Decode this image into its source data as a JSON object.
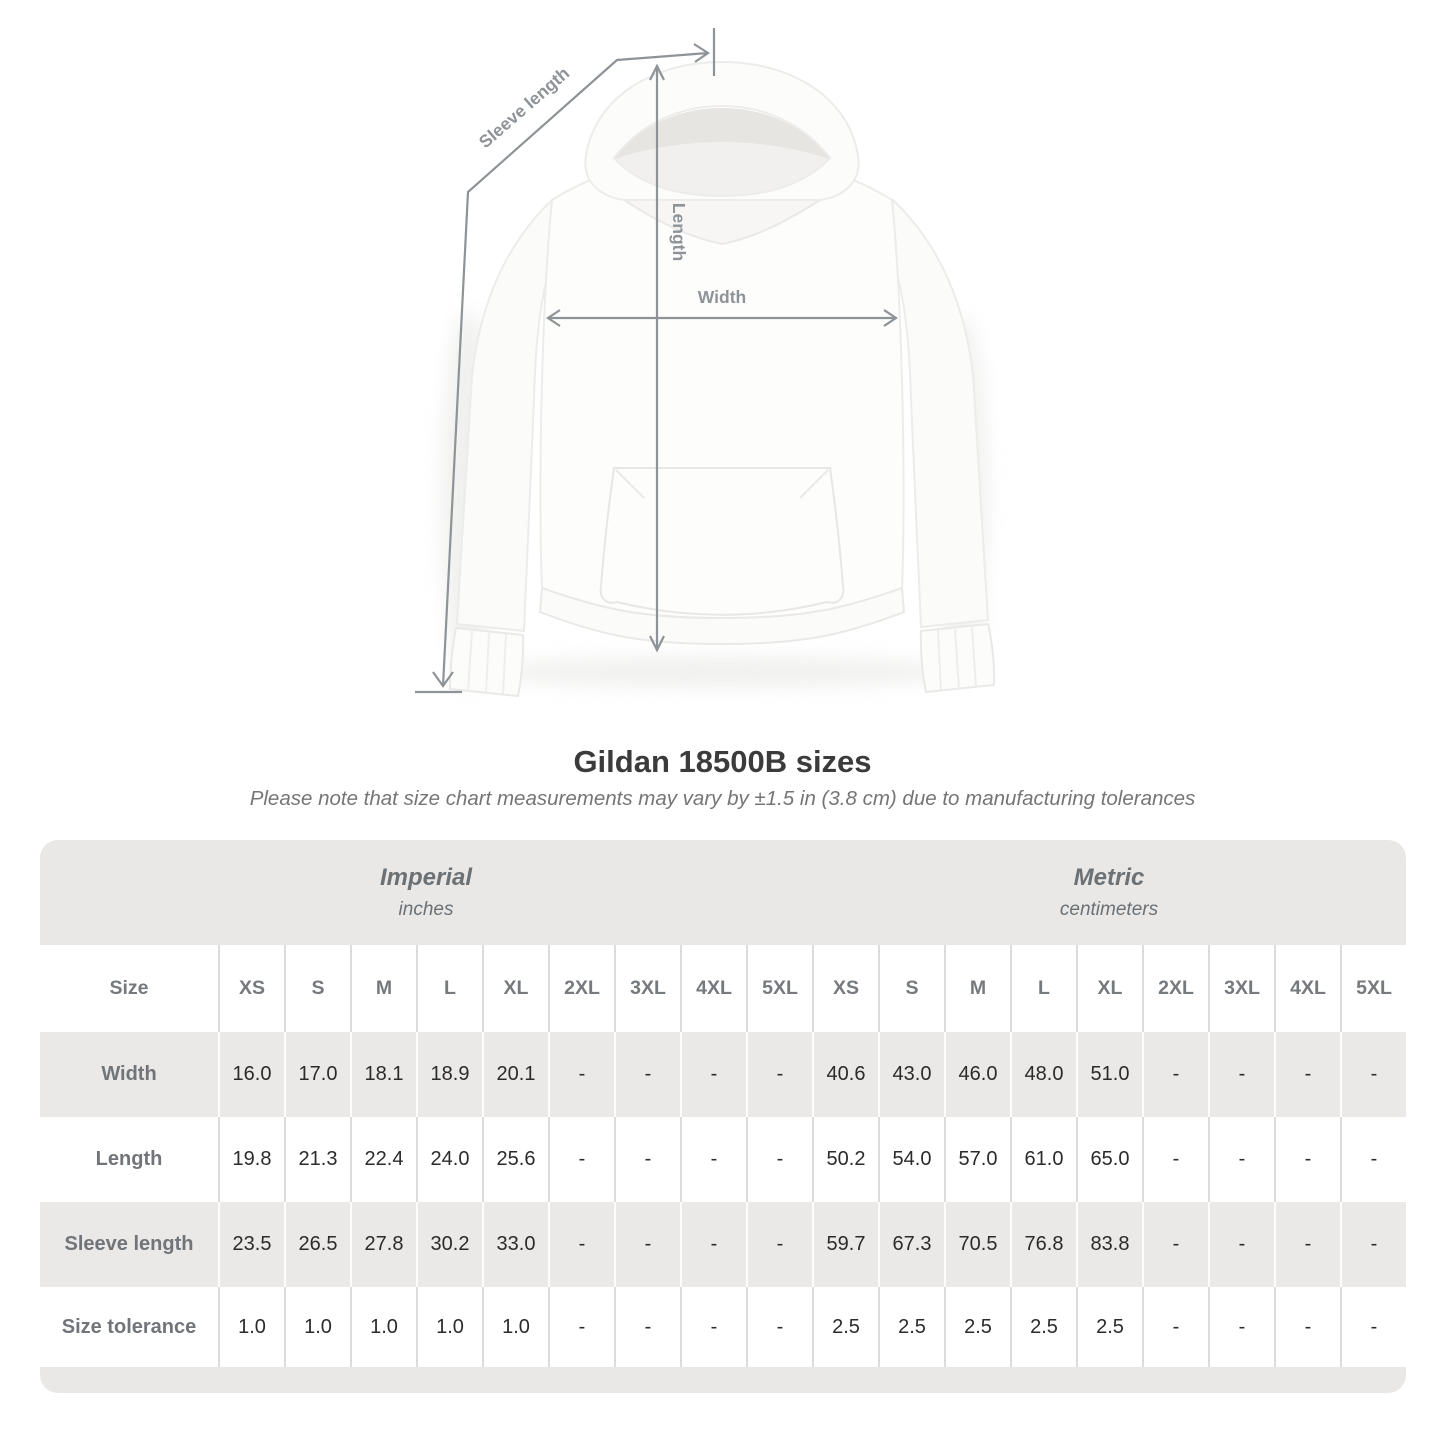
{
  "title": "Gildan 18500B sizes",
  "subtitle": "Please note that size chart measurements may vary by ±1.5 in (3.8 cm) due to manufacturing tolerances",
  "diagram": {
    "product": "white pullover hoodie, front view",
    "measure_labels": {
      "sleeve_length": "Sleeve length",
      "length": "Length",
      "width": "Width"
    }
  },
  "chart_data": {
    "type": "table",
    "title": "Gildan 18500B sizes",
    "corner_header": "Size",
    "unit_groups": [
      {
        "label": "Imperial",
        "units": "inches"
      },
      {
        "label": "Metric",
        "units": "centimeters"
      }
    ],
    "sizes": [
      "XS",
      "S",
      "M",
      "L",
      "XL",
      "2XL",
      "3XL",
      "4XL",
      "5XL"
    ],
    "rows": [
      {
        "label": "Width",
        "imperial": [
          "16.0",
          "17.0",
          "18.1",
          "18.9",
          "20.1",
          "-",
          "-",
          "-",
          "-"
        ],
        "metric": [
          "40.6",
          "43.0",
          "46.0",
          "48.0",
          "51.0",
          "-",
          "-",
          "-",
          "-"
        ]
      },
      {
        "label": "Length",
        "imperial": [
          "19.8",
          "21.3",
          "22.4",
          "24.0",
          "25.6",
          "-",
          "-",
          "-",
          "-"
        ],
        "metric": [
          "50.2",
          "54.0",
          "57.0",
          "61.0",
          "65.0",
          "-",
          "-",
          "-",
          "-"
        ]
      },
      {
        "label": "Sleeve length",
        "imperial": [
          "23.5",
          "26.5",
          "27.8",
          "30.2",
          "33.0",
          "-",
          "-",
          "-",
          "-"
        ],
        "metric": [
          "59.7",
          "67.3",
          "70.5",
          "76.8",
          "83.8",
          "-",
          "-",
          "-",
          "-"
        ]
      },
      {
        "label": "Size tolerance",
        "imperial": [
          "1.0",
          "1.0",
          "1.0",
          "1.0",
          "1.0",
          "-",
          "-",
          "-",
          "-"
        ],
        "metric": [
          "2.5",
          "2.5",
          "2.5",
          "2.5",
          "2.5",
          "-",
          "-",
          "-",
          "-"
        ]
      }
    ]
  },
  "colors": {
    "band_gray": "#e9e8e6",
    "row_gray": "#eae9e7",
    "separator": "#dcdcdb",
    "label_text": "#717579",
    "value_text": "#2b2b2b",
    "measure_gray": "#8e9398"
  }
}
